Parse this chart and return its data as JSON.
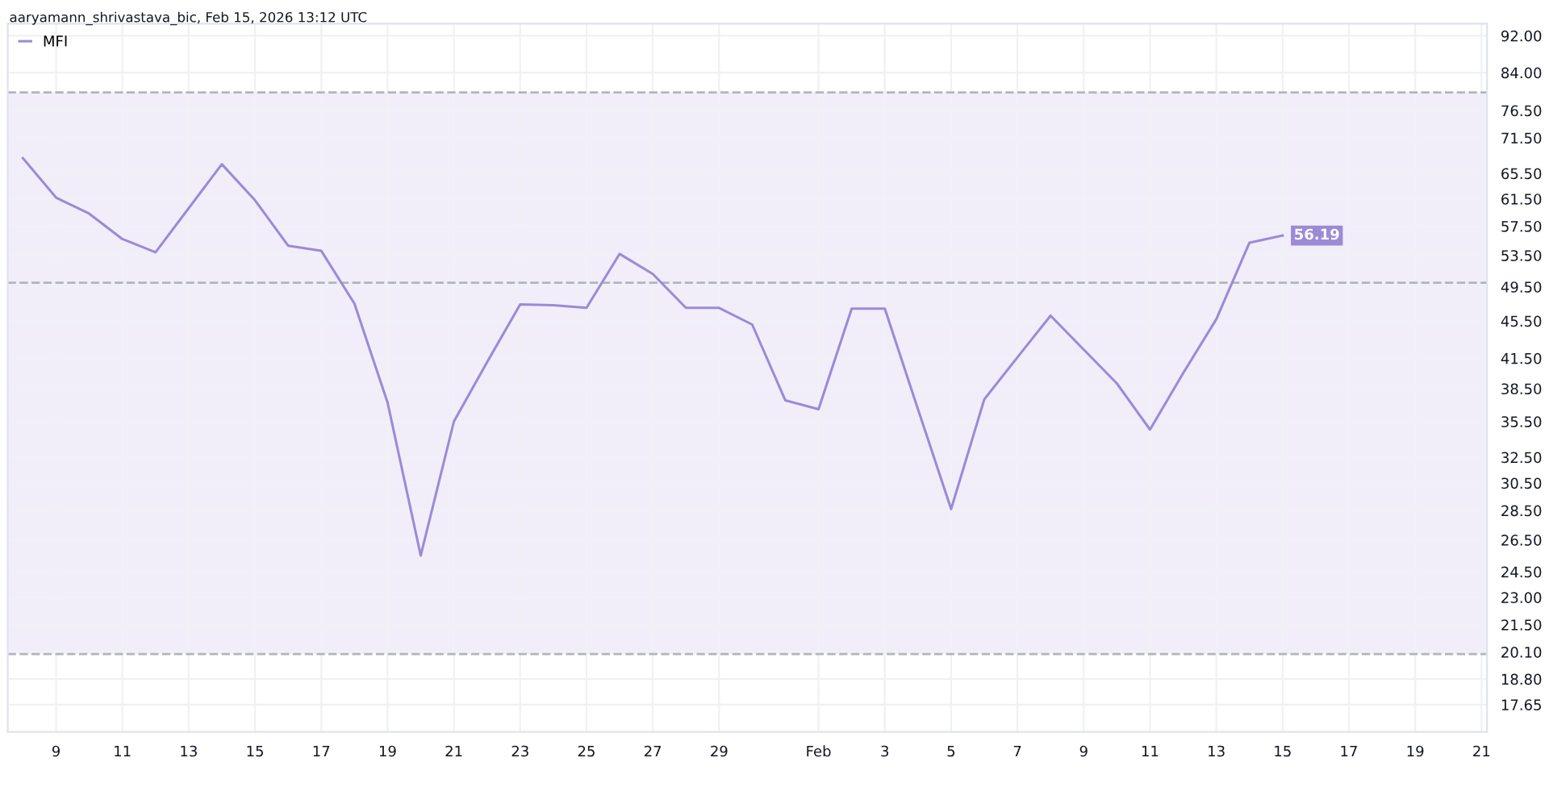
{
  "chart_data": {
    "type": "line",
    "annotations": [
      {
        "text": "aaryamann_shrivastava_bic, Feb 15, 2026 13:12 UTC"
      },
      {
        "text": "56.19",
        "x": "2026-02-15",
        "y": 56.19
      }
    ],
    "x": [
      "2026-01-08",
      "2026-01-09",
      "2026-01-10",
      "2026-01-11",
      "2026-01-12",
      "2026-01-13",
      "2026-01-14",
      "2026-01-15",
      "2026-01-16",
      "2026-01-17",
      "2026-01-18",
      "2026-01-19",
      "2026-01-20",
      "2026-01-21",
      "2026-01-22",
      "2026-01-23",
      "2026-01-24",
      "2026-01-25",
      "2026-01-26",
      "2026-01-27",
      "2026-01-28",
      "2026-01-29",
      "2026-01-30",
      "2026-01-31",
      "2026-02-01",
      "2026-02-02",
      "2026-02-03",
      "2026-02-04",
      "2026-02-05",
      "2026-02-06",
      "2026-02-07",
      "2026-02-08",
      "2026-02-09",
      "2026-02-10",
      "2026-02-11",
      "2026-02-12",
      "2026-02-13",
      "2026-02-14",
      "2026-02-15"
    ],
    "series": [
      {
        "name": "MFI",
        "color": "#9c8ad6",
        "values": [
          68.0,
          61.7,
          59.3,
          55.7,
          53.9,
          60.1,
          67.0,
          61.3,
          54.8,
          54.1,
          47.5,
          37.2,
          25.5,
          35.5,
          41.1,
          47.4,
          47.3,
          47.0,
          53.7,
          51.1,
          47.0,
          47.0,
          45.1,
          37.4,
          36.6,
          46.9,
          46.9,
          36.6,
          28.6,
          37.5,
          41.6,
          46.1,
          42.4,
          39.0,
          34.8,
          40.0,
          45.7,
          55.2,
          56.19
        ]
      }
    ],
    "log": "y",
    "xlim": [
      "2026-01-07T13:00",
      "2026-02-21T04:00"
    ],
    "ylim": [
      16.5,
      94.8
    ],
    "xticks": [
      {
        "value": "2026-01-09",
        "label": "9"
      },
      {
        "value": "2026-01-11",
        "label": "11"
      },
      {
        "value": "2026-01-13",
        "label": "13"
      },
      {
        "value": "2026-01-15",
        "label": "15"
      },
      {
        "value": "2026-01-17",
        "label": "17"
      },
      {
        "value": "2026-01-19",
        "label": "19"
      },
      {
        "value": "2026-01-21",
        "label": "21"
      },
      {
        "value": "2026-01-23",
        "label": "23"
      },
      {
        "value": "2026-01-25",
        "label": "25"
      },
      {
        "value": "2026-01-27",
        "label": "27"
      },
      {
        "value": "2026-01-29",
        "label": "29"
      },
      {
        "value": "2026-02-01",
        "label": "Feb"
      },
      {
        "value": "2026-02-03",
        "label": "3"
      },
      {
        "value": "2026-02-05",
        "label": "5"
      },
      {
        "value": "2026-02-07",
        "label": "7"
      },
      {
        "value": "2026-02-09",
        "label": "9"
      },
      {
        "value": "2026-02-11",
        "label": "11"
      },
      {
        "value": "2026-02-13",
        "label": "13"
      },
      {
        "value": "2026-02-15",
        "label": "15"
      },
      {
        "value": "2026-02-17",
        "label": "17"
      },
      {
        "value": "2026-02-19",
        "label": "19"
      },
      {
        "value": "2026-02-21",
        "label": "21"
      }
    ],
    "yticks": [
      {
        "value": 92,
        "label": "92.00"
      },
      {
        "value": 84,
        "label": "84.00"
      },
      {
        "value": 76.5,
        "label": "76.50"
      },
      {
        "value": 71.5,
        "label": "71.50"
      },
      {
        "value": 65.5,
        "label": "65.50"
      },
      {
        "value": 61.5,
        "label": "61.50"
      },
      {
        "value": 57.5,
        "label": "57.50"
      },
      {
        "value": 53.5,
        "label": "53.50"
      },
      {
        "value": 49.5,
        "label": "49.50"
      },
      {
        "value": 45.5,
        "label": "45.50"
      },
      {
        "value": 41.5,
        "label": "41.50"
      },
      {
        "value": 38.5,
        "label": "38.50"
      },
      {
        "value": 35.5,
        "label": "35.50"
      },
      {
        "value": 32.5,
        "label": "32.50"
      },
      {
        "value": 30.5,
        "label": "30.50"
      },
      {
        "value": 28.5,
        "label": "28.50"
      },
      {
        "value": 26.5,
        "label": "26.50"
      },
      {
        "value": 24.5,
        "label": "24.50"
      },
      {
        "value": 23,
        "label": "23.00"
      },
      {
        "value": 21.5,
        "label": "21.50"
      },
      {
        "value": 20.1,
        "label": "20.10"
      },
      {
        "value": 18.8,
        "label": "18.80"
      },
      {
        "value": 17.65,
        "label": "17.65"
      }
    ],
    "ref_lines": [
      {
        "axis": "y",
        "value": 80,
        "color": "#b2b5be",
        "line_style": "dashed"
      },
      {
        "axis": "y",
        "value": 50,
        "color": "#b2b5be",
        "line_style": "dashed"
      },
      {
        "axis": "y",
        "value": 20,
        "color": "#b2b5be",
        "line_style": "dashed"
      }
    ],
    "bands": [
      {
        "axis": "y",
        "from": 20,
        "to": 80,
        "color": "#f1eefa"
      }
    ],
    "grid": true,
    "legend": "top left",
    "marker": "none",
    "line_style": "solid"
  }
}
